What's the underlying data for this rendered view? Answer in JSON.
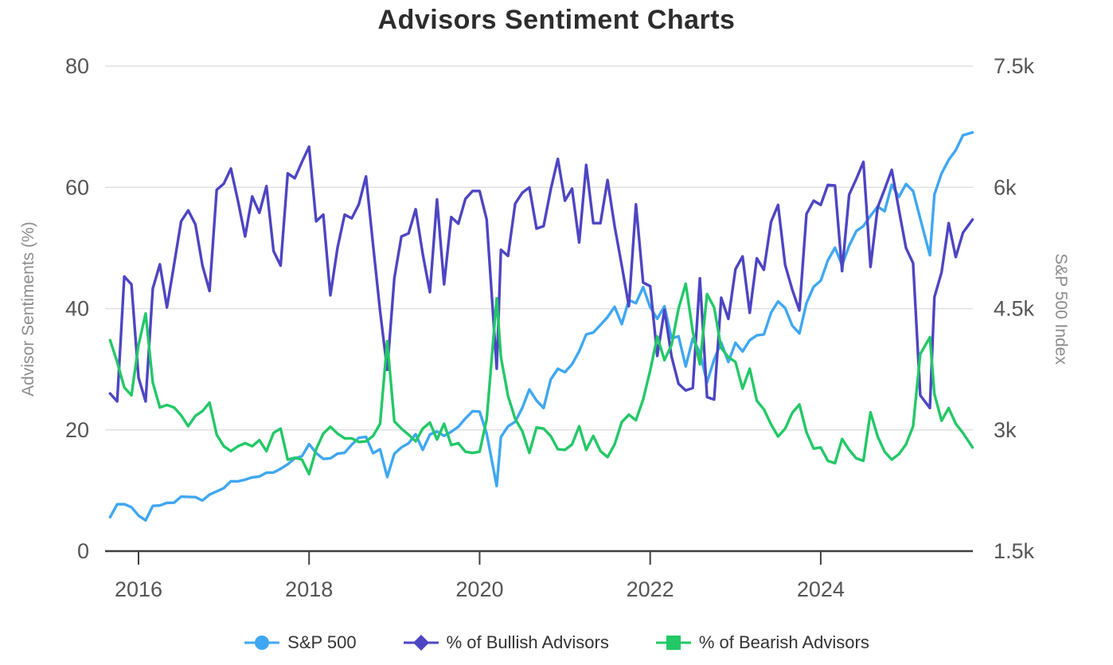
{
  "title": "Advisors Sentiment Charts",
  "chart_data": {
    "type": "line",
    "title": "Advisors Sentiment Charts",
    "grid": true,
    "legend_position": "bottom",
    "x_range": [
      2015.608,
      2025.784
    ],
    "x_axis": {
      "tick_values": [
        2016,
        2018,
        2020,
        2022,
        2024
      ],
      "tick_labels": [
        "2016",
        "2018",
        "2020",
        "2022",
        "2024"
      ]
    },
    "left_axis": {
      "label": "Advisor Sentiments (%)",
      "range": [
        0,
        80
      ],
      "tick_values": [
        0,
        20,
        40,
        60,
        80
      ],
      "tick_labels": [
        "0",
        "20",
        "40",
        "60",
        "80"
      ]
    },
    "right_axis": {
      "label": "S&P 500 Index",
      "range": [
        1500,
        7500
      ],
      "tick_values": [
        1500,
        3000,
        4500,
        6000,
        7500
      ],
      "tick_labels": [
        "1.5k",
        "3k",
        "4.5k",
        "6k",
        "7.5k"
      ]
    },
    "x": [
      2015.667,
      2015.75,
      2015.833,
      2015.917,
      2016.0,
      2016.083,
      2016.167,
      2016.25,
      2016.333,
      2016.417,
      2016.5,
      2016.583,
      2016.667,
      2016.75,
      2016.833,
      2016.917,
      2017.0,
      2017.083,
      2017.167,
      2017.25,
      2017.333,
      2017.417,
      2017.5,
      2017.583,
      2017.667,
      2017.75,
      2017.833,
      2017.917,
      2018.0,
      2018.083,
      2018.167,
      2018.25,
      2018.333,
      2018.417,
      2018.5,
      2018.583,
      2018.667,
      2018.75,
      2018.833,
      2018.917,
      2019.0,
      2019.083,
      2019.167,
      2019.25,
      2019.333,
      2019.417,
      2019.5,
      2019.583,
      2019.667,
      2019.75,
      2019.833,
      2019.917,
      2020.0,
      2020.083,
      2020.2,
      2020.25,
      2020.333,
      2020.417,
      2020.5,
      2020.583,
      2020.667,
      2020.75,
      2020.833,
      2020.917,
      2021.0,
      2021.083,
      2021.167,
      2021.25,
      2021.333,
      2021.417,
      2021.5,
      2021.583,
      2021.667,
      2021.75,
      2021.833,
      2021.917,
      2022.0,
      2022.083,
      2022.167,
      2022.25,
      2022.333,
      2022.417,
      2022.5,
      2022.583,
      2022.667,
      2022.75,
      2022.833,
      2022.917,
      2023.0,
      2023.083,
      2023.167,
      2023.25,
      2023.333,
      2023.417,
      2023.5,
      2023.583,
      2023.667,
      2023.75,
      2023.833,
      2023.917,
      2024.0,
      2024.083,
      2024.167,
      2024.25,
      2024.333,
      2024.417,
      2024.5,
      2024.583,
      2024.667,
      2024.75,
      2024.833,
      2024.917,
      2025.0,
      2025.083,
      2025.167,
      2025.28,
      2025.333,
      2025.417,
      2025.5,
      2025.583,
      2025.667,
      2025.78
    ],
    "series": [
      {
        "name": "S&P 500",
        "key": "sp500",
        "axis": "right",
        "color": "#3FA7F1",
        "marker": "circle",
        "values": [
          1920,
          2079,
          2080,
          2044,
          1940,
          1880,
          2060,
          2065,
          2097,
          2099,
          2174,
          2171,
          2168,
          2126,
          2199,
          2239,
          2279,
          2364,
          2363,
          2384,
          2412,
          2423,
          2470,
          2472,
          2519,
          2575,
          2648,
          2674,
          2824,
          2714,
          2641,
          2648,
          2705,
          2718,
          2816,
          2902,
          2914,
          2712,
          2760,
          2416,
          2704,
          2784,
          2834,
          2946,
          2752,
          2942,
          2980,
          2926,
          2977,
          3038,
          3141,
          3231,
          3226,
          2954,
          2305,
          2912,
          3044,
          3100,
          3271,
          3500,
          3363,
          3270,
          3622,
          3756,
          3714,
          3811,
          3973,
          4181,
          4204,
          4298,
          4395,
          4523,
          4308,
          4605,
          4567,
          4766,
          4516,
          4374,
          4530,
          4132,
          4158,
          3785,
          4130,
          3955,
          3586,
          3872,
          4080,
          3840,
          4077,
          3970,
          4109,
          4169,
          4180,
          4450,
          4589,
          4508,
          4288,
          4194,
          4568,
          4770,
          4846,
          5096,
          5254,
          5036,
          5278,
          5460,
          5522,
          5648,
          5762,
          5705,
          6032,
          5882,
          6041,
          5955,
          5612,
          5160,
          5912,
          6173,
          6339,
          6460,
          6644,
          6680
        ]
      },
      {
        "name": "% of Bullish Advisors",
        "key": "bullish",
        "axis": "left",
        "color": "#4D45C3",
        "marker": "diamond",
        "values": [
          26.0,
          24.7,
          45.3,
          44.0,
          28.6,
          24.7,
          43.3,
          47.3,
          40.2,
          47.3,
          54.4,
          56.2,
          53.9,
          47.1,
          42.9,
          59.6,
          60.6,
          63.1,
          57.7,
          51.9,
          58.5,
          55.8,
          60.2,
          49.5,
          47.1,
          62.3,
          61.5,
          64.2,
          66.7,
          54.4,
          55.5,
          42.2,
          50.0,
          55.5,
          54.9,
          57.2,
          61.8,
          50.5,
          39.6,
          29.9,
          45.0,
          51.9,
          52.4,
          56.4,
          49.0,
          42.7,
          58.0,
          44.0,
          55.1,
          54.0,
          58.1,
          59.4,
          59.4,
          54.7,
          30.1,
          49.7,
          48.7,
          57.3,
          59.1,
          60.0,
          53.2,
          53.6,
          59.6,
          64.7,
          57.8,
          59.8,
          50.9,
          63.7,
          54.1,
          54.1,
          61.2,
          53.6,
          47.1,
          40.4,
          57.2,
          44.3,
          43.7,
          32.2,
          39.8,
          32.1,
          27.6,
          26.5,
          26.9,
          45.0,
          25.4,
          25.0,
          41.8,
          38.3,
          46.5,
          48.6,
          39.3,
          48.3,
          46.4,
          54.3,
          57.1,
          47.2,
          43.1,
          39.7,
          55.6,
          57.8,
          57.1,
          60.4,
          60.3,
          46.2,
          58.8,
          61.4,
          64.2,
          46.9,
          56.7,
          59.7,
          62.9,
          56.3,
          50.0,
          47.5,
          25.7,
          23.6,
          41.9,
          46.0,
          54.1,
          48.5,
          52.5,
          54.7
        ]
      },
      {
        "name": "% of Bearish Advisors",
        "key": "bearish",
        "axis": "left",
        "color": "#23C867",
        "marker": "square",
        "values": [
          34.8,
          31.2,
          27.0,
          25.7,
          34.0,
          39.2,
          27.8,
          23.7,
          24.1,
          23.7,
          22.4,
          20.6,
          22.3,
          23.1,
          24.5,
          19.2,
          17.3,
          16.5,
          17.3,
          17.8,
          17.3,
          18.3,
          16.5,
          19.5,
          20.2,
          15.1,
          15.4,
          15.1,
          12.7,
          16.8,
          19.4,
          20.5,
          19.4,
          18.6,
          18.6,
          18.0,
          18.1,
          19.0,
          21.0,
          34.6,
          21.4,
          20.2,
          19.2,
          18.1,
          20.2,
          21.2,
          18.4,
          21.0,
          17.5,
          17.8,
          16.4,
          16.2,
          16.4,
          21.7,
          41.7,
          32.0,
          25.6,
          21.8,
          19.8,
          16.2,
          20.4,
          20.2,
          19.0,
          16.8,
          16.7,
          17.6,
          20.6,
          16.7,
          19.0,
          16.5,
          15.5,
          17.6,
          21.3,
          22.5,
          21.6,
          25.0,
          29.8,
          35.4,
          31.5,
          34.0,
          40.0,
          44.1,
          36.2,
          30.8,
          42.4,
          40.2,
          33.5,
          32.0,
          31.2,
          26.8,
          30.1,
          24.8,
          23.4,
          20.9,
          18.9,
          20.2,
          22.8,
          24.2,
          19.6,
          16.9,
          17.1,
          14.9,
          14.5,
          18.5,
          16.7,
          15.3,
          14.9,
          22.9,
          18.9,
          16.4,
          15.1,
          16.0,
          17.6,
          20.6,
          32.5,
          35.3,
          25.9,
          21.5,
          23.6,
          21.0,
          19.5,
          17.1
        ]
      }
    ]
  }
}
